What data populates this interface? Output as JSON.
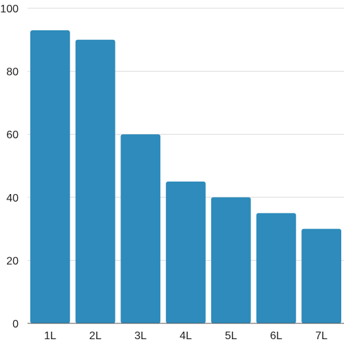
{
  "chart_data": {
    "type": "bar",
    "title": "",
    "xlabel": "",
    "ylabel": "",
    "categories": [
      "1L",
      "2L",
      "3L",
      "4L",
      "5L",
      "6L",
      "7L"
    ],
    "values": [
      93,
      90,
      60,
      45,
      40,
      35,
      30
    ],
    "ylim": [
      0,
      100
    ],
    "yticks": [
      0,
      20,
      40,
      60,
      80,
      100
    ],
    "grid": true,
    "legend": "none",
    "bar_color": "#2e8bbb",
    "grid_color": "#d9d9d9"
  }
}
